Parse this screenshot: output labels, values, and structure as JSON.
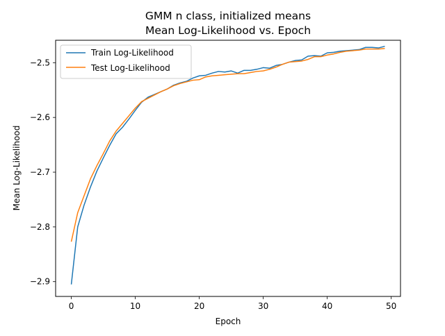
{
  "chart_data": {
    "type": "line",
    "title": "GMM n class, initialized means",
    "subtitle": "Mean Log-Likelihood vs. Epoch",
    "xlabel": "Epoch",
    "ylabel": "Mean Log-Likelihood",
    "xlim": [
      -2.45,
      51.45
    ],
    "ylim": [
      -2.927,
      -2.459
    ],
    "xticks": [
      0,
      10,
      20,
      30,
      40,
      50
    ],
    "xtick_labels": [
      "0",
      "10",
      "20",
      "30",
      "40",
      "50"
    ],
    "yticks": [
      -2.9,
      -2.8,
      -2.7,
      -2.6,
      -2.5
    ],
    "ytick_labels": [
      "−2.9",
      "−2.8",
      "−2.7",
      "−2.6",
      "−2.5"
    ],
    "grid": false,
    "legend_position": "top-left",
    "x": [
      0,
      1,
      2,
      3,
      4,
      5,
      6,
      7,
      8,
      9,
      10,
      11,
      12,
      13,
      14,
      15,
      16,
      17,
      18,
      19,
      20,
      21,
      22,
      23,
      24,
      25,
      26,
      27,
      28,
      29,
      30,
      31,
      32,
      33,
      34,
      35,
      36,
      37,
      38,
      39,
      40,
      41,
      42,
      43,
      44,
      45,
      46,
      47,
      48,
      49
    ],
    "series": [
      {
        "name": "Train Log-Likelihood",
        "color": "#1f77b4",
        "values": [
          -2.905,
          -2.8,
          -2.76,
          -2.727,
          -2.698,
          -2.674,
          -2.651,
          -2.63,
          -2.618,
          -2.603,
          -2.587,
          -2.572,
          -2.563,
          -2.558,
          -2.553,
          -2.548,
          -2.541,
          -2.537,
          -2.534,
          -2.528,
          -2.524,
          -2.523,
          -2.519,
          -2.516,
          -2.517,
          -2.515,
          -2.519,
          -2.514,
          -2.514,
          -2.512,
          -2.509,
          -2.51,
          -2.505,
          -2.503,
          -2.499,
          -2.496,
          -2.495,
          -2.488,
          -2.487,
          -2.488,
          -2.482,
          -2.481,
          -2.479,
          -2.478,
          -2.477,
          -2.476,
          -2.472,
          -2.472,
          -2.473,
          -2.47
        ]
      },
      {
        "name": "Test Log-Likelihood",
        "color": "#ff7f0e",
        "values": [
          -2.827,
          -2.774,
          -2.743,
          -2.712,
          -2.688,
          -2.666,
          -2.643,
          -2.625,
          -2.611,
          -2.597,
          -2.583,
          -2.571,
          -2.565,
          -2.559,
          -2.553,
          -2.548,
          -2.542,
          -2.538,
          -2.535,
          -2.532,
          -2.531,
          -2.526,
          -2.524,
          -2.523,
          -2.522,
          -2.521,
          -2.52,
          -2.52,
          -2.518,
          -2.516,
          -2.515,
          -2.512,
          -2.508,
          -2.503,
          -2.499,
          -2.498,
          -2.497,
          -2.494,
          -2.489,
          -2.489,
          -2.486,
          -2.484,
          -2.481,
          -2.479,
          -2.478,
          -2.477,
          -2.475,
          -2.475,
          -2.475,
          -2.474
        ]
      }
    ]
  }
}
